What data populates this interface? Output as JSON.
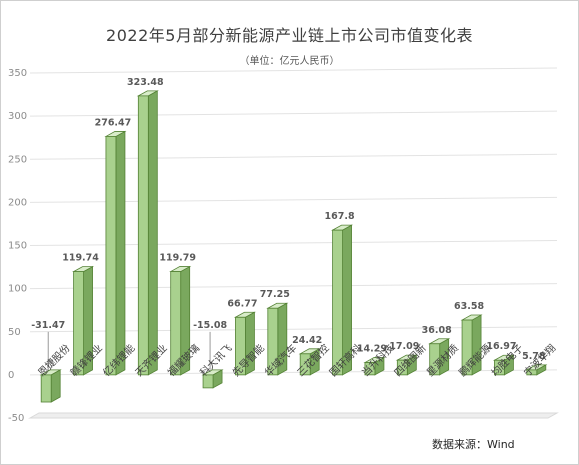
{
  "title": "2022年5月部分新能源产业链上市公司市值变化表",
  "subtitle": "（单位：亿元人民币）",
  "source": "数据来源：Wind",
  "colors": {
    "bar_front": "#a9d18e",
    "bar_side": "#7aa85e",
    "bar_top": "#d8ecc9",
    "bar_stroke": "#548235",
    "grid": "#e3e3e3"
  },
  "chart_data": {
    "type": "bar",
    "title": "2022年5月部分新能源产业链上市公司市值变化表",
    "subtitle": "（单位：亿元人民币）",
    "categories": [
      "恩捷股份",
      "赣锋锂业",
      "亿纬锂能",
      "天齐锂业",
      "福耀玻璃",
      "科大讯飞",
      "先导智能",
      "华域汽车",
      "三花智控",
      "国轩高科",
      "当升科技",
      "四维图新",
      "星源材质",
      "鹏辉能源",
      "均胜电子",
      "宁波华翔"
    ],
    "values": [
      -31.47,
      119.74,
      276.47,
      323.48,
      119.79,
      -15.08,
      66.77,
      77.25,
      24.42,
      167.8,
      14.29,
      17.09,
      36.08,
      63.58,
      16.97,
      5.78
    ],
    "data_labels": [
      "-31.47",
      "119.74",
      "276.47",
      "323.48",
      "119.79",
      "-15.08",
      "66.77",
      "77.25",
      "24.42",
      "167.8",
      "14.29",
      "17.09",
      "36.08",
      "63.58",
      "16.97",
      "5.78"
    ],
    "yticks": [
      "-50",
      "0",
      "50",
      "100",
      "150",
      "200",
      "250",
      "300",
      "350"
    ],
    "ylim": [
      -50,
      350
    ],
    "grid": true,
    "legend": "none"
  }
}
